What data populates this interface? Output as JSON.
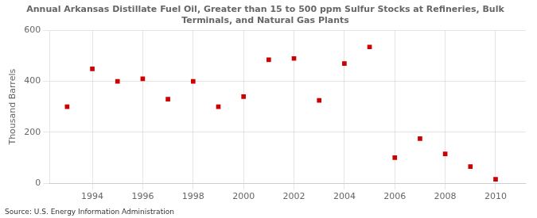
{
  "chart_data": {
    "type": "scatter",
    "title": "Annual Arkansas Distillate Fuel Oil, Greater than 15 to 500 ppm Sulfur Stocks at Refineries, Bulk\nTerminals, and Natural Gas Plants",
    "ylabel": "Thousand Barrels",
    "annotation": "Source: U.S. Energy Information Administration",
    "x": [
      1993,
      1994,
      1995,
      1996,
      1997,
      1998,
      1999,
      2000,
      2001,
      2002,
      2003,
      2004,
      2005,
      2006,
      2007,
      2008,
      2009,
      2010
    ],
    "values": [
      300,
      449,
      400,
      410,
      330,
      400,
      300,
      340,
      485,
      490,
      325,
      470,
      535,
      100,
      175,
      115,
      65,
      15
    ],
    "color": "#cc0000",
    "marker": "square",
    "xlim": [
      1992.3,
      2011.2
    ],
    "xticks": [
      1994,
      1996,
      1998,
      2000,
      2002,
      2004,
      2006,
      2008,
      2010
    ],
    "ylim": [
      0,
      600
    ],
    "yticks": [
      0,
      200,
      400,
      600
    ],
    "grid": true
  }
}
